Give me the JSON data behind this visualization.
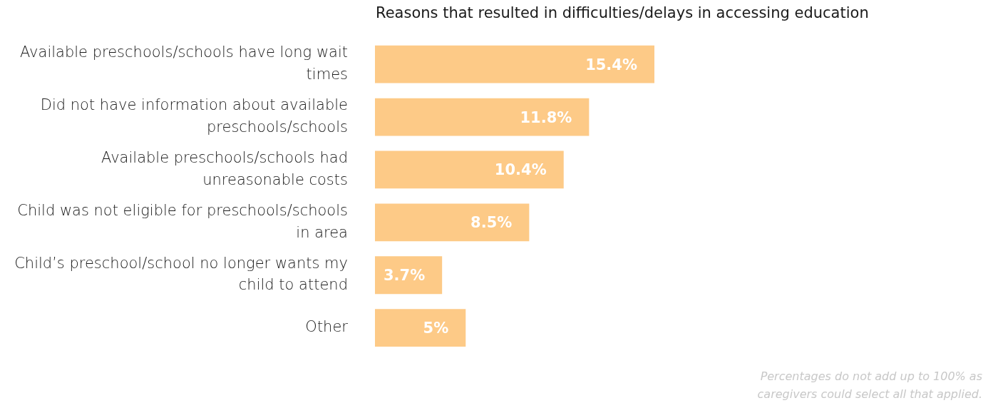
{
  "chart_data": {
    "type": "bar",
    "orientation": "horizontal",
    "title": "Reasons that resulted in difficulties/delays in accessing education",
    "categories": [
      "Available preschools/schools have long wait times",
      "Did not have information about available preschools/schools",
      "Available preschools/schools had unreasonable costs",
      "Child was not eligible for preschools/schools in area",
      "Child’s preschool/school no longer wants my child to attend",
      "Other"
    ],
    "values": [
      15.4,
      11.8,
      10.4,
      8.5,
      3.7,
      5
    ],
    "value_labels": [
      "15.4%",
      "11.8%",
      "10.4%",
      "8.5%",
      "3.7%",
      "5%"
    ],
    "color": "#fdca87",
    "annotations": [
      "Percentages do not add up to 100% as caregivers could select all that applied."
    ],
    "grid": false,
    "legend": false
  }
}
